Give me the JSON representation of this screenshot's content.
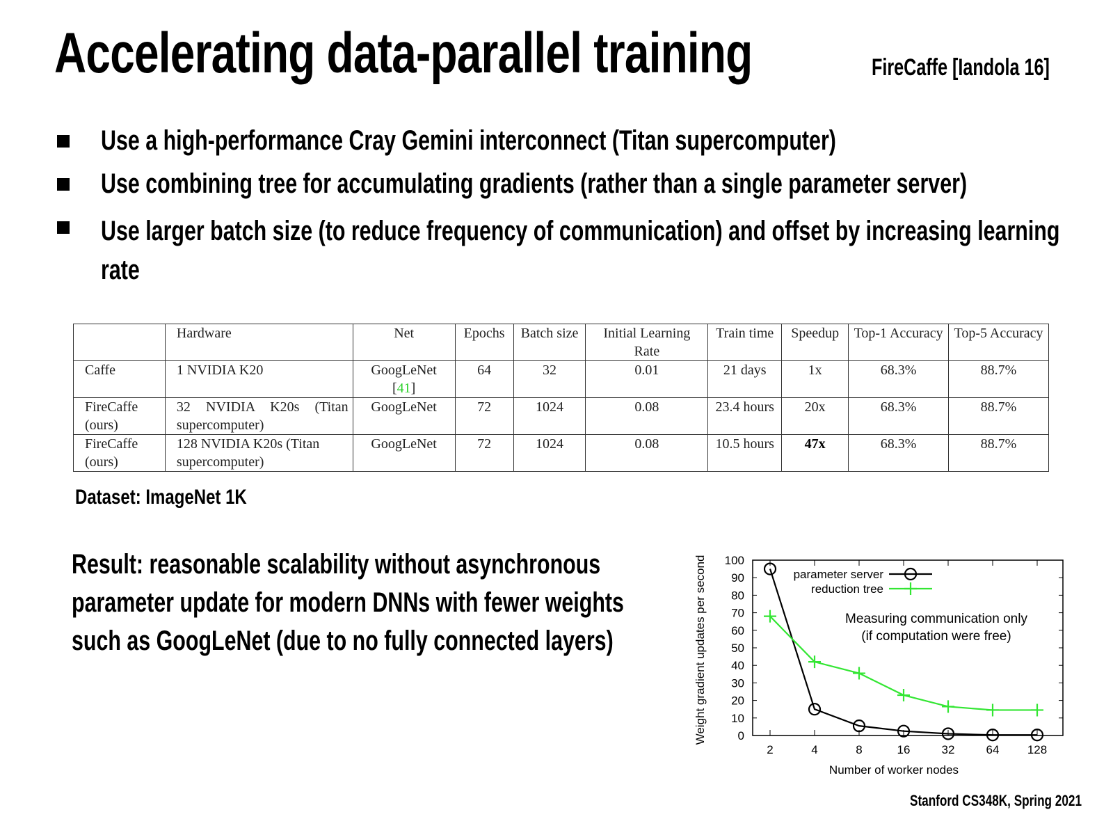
{
  "title": "Accelerating data-parallel training",
  "citation": "FireCaffe [Iandola 16]",
  "bullets": [
    "Use a high-performance Cray Gemini interconnect (Titan supercomputer)",
    "Use combining tree for accumulating gradients (rather than a single parameter server)",
    "Use larger batch size (to reduce frequency of communication) and offset by increasing learning rate"
  ],
  "table": {
    "headers": [
      "",
      "Hardware",
      "Net",
      "Epochs",
      "Batch size",
      "Initial Learning Rate",
      "Train time",
      "Speedup",
      "Top-1 Accuracy",
      "Top-5 Accuracy"
    ],
    "rows": [
      {
        "system": "Caffe",
        "hardware": "1 NVIDIA K20",
        "net": "GoogLeNet",
        "ref": "41",
        "epochs": "64",
        "batch": "32",
        "lr": "0.01",
        "time": "21 days",
        "speedup": "1x",
        "top1": "68.3%",
        "top5": "88.7%"
      },
      {
        "system": "FireCaffe (ours)",
        "hardware": "32 NVIDIA K20s (Titan supercomputer)",
        "net": "GoogLeNet",
        "epochs": "72",
        "batch": "1024",
        "lr": "0.08",
        "time": "23.4 hours",
        "speedup": "20x",
        "top1": "68.3%",
        "top5": "88.7%"
      },
      {
        "system": "FireCaffe (ours)",
        "hardware": "128 NVIDIA K20s (Titan supercomputer)",
        "net": "GoogLeNet",
        "epochs": "72",
        "batch": "1024",
        "lr": "0.08",
        "time": "10.5 hours",
        "speedup": "47x",
        "top1": "68.3%",
        "top5": "88.7%"
      }
    ]
  },
  "dataset": "Dataset: ImageNet 1K",
  "result": "Result: reasonable scalability without asynchronous parameter update for modern DNNs with fewer weights such as GoogLeNet (due to no fully connected layers)",
  "footer": "Stanford CS348K, Spring 2021",
  "chart_data": {
    "type": "line",
    "x": [
      2,
      4,
      8,
      16,
      32,
      64,
      128
    ],
    "xticks": [
      "2",
      "4",
      "8",
      "16",
      "32",
      "64",
      "128"
    ],
    "xscale": "log2",
    "yticks": [
      "0",
      "10",
      "20",
      "30",
      "40",
      "50",
      "60",
      "70",
      "80",
      "90",
      "100"
    ],
    "ylim": [
      0,
      100
    ],
    "xlabel": "Number of worker nodes",
    "ylabel": "Weight gradient updates per second",
    "annotation": [
      "Measuring communication only",
      "(if computation were free)"
    ],
    "legend_placement": "top-left",
    "series": [
      {
        "name": "parameter server",
        "color": "#000000",
        "marker": "circle",
        "values": [
          95,
          15,
          5.5,
          2.5,
          1,
          0.3,
          0.3
        ]
      },
      {
        "name": "reduction tree",
        "color": "#33e633",
        "marker": "plus",
        "values": [
          68,
          42,
          35.5,
          23,
          16.5,
          14.5,
          14.5
        ]
      }
    ]
  }
}
